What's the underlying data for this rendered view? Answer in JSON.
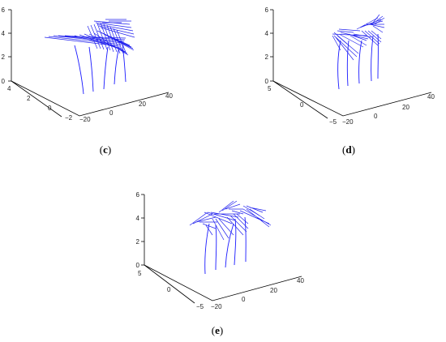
{
  "panels": [
    {
      "caption": "c",
      "z_ticks": [
        "0",
        "2",
        "4",
        "6"
      ],
      "y_ticks": [
        "4",
        "2",
        "0",
        "−2"
      ],
      "x_ticks": [
        "−20",
        "0",
        "20",
        "40"
      ]
    },
    {
      "caption": "d",
      "z_ticks": [
        "0",
        "2",
        "4",
        "6"
      ],
      "y_ticks": [
        "5",
        "0",
        "−5"
      ],
      "x_ticks": [
        "−20",
        "0",
        "20",
        "40"
      ]
    },
    {
      "caption": "e",
      "z_ticks": [
        "0",
        "2",
        "4",
        "6"
      ],
      "y_ticks": [
        "5",
        "0",
        "−5"
      ],
      "x_ticks": [
        "−20",
        "0",
        "20",
        "40"
      ]
    }
  ],
  "colors": {
    "plant": "#1a1aff",
    "axis": "#000000"
  }
}
